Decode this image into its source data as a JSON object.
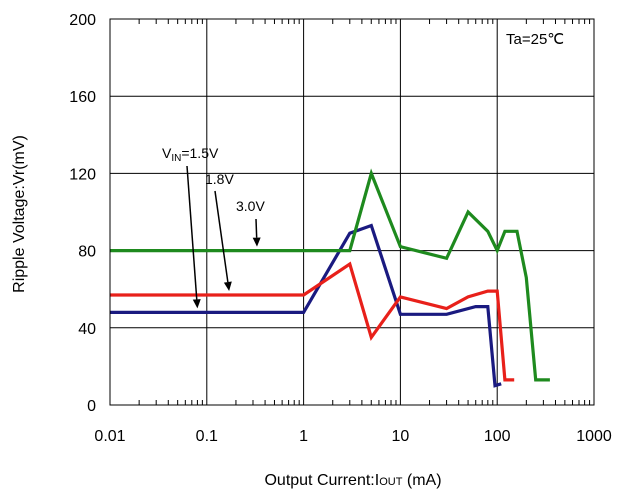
{
  "chart_data": {
    "type": "line",
    "xlabel": "Output Current:I",
    "xlabel_sub": "OUT",
    "xlabel_unit": " (mA)",
    "ylabel": "Ripple Voltage:Vr(mV)",
    "x_scale": "log",
    "xlim": [
      0.01,
      1000
    ],
    "ylim": [
      0,
      200
    ],
    "x_ticks": [
      0.01,
      0.1,
      1,
      10,
      100,
      1000
    ],
    "x_tick_labels": [
      "0.01",
      "0.1",
      "1",
      "10",
      "100",
      "1000"
    ],
    "y_ticks": [
      0,
      40,
      80,
      120,
      160,
      200
    ],
    "y_tick_labels": [
      "0",
      "40",
      "80",
      "120",
      "160",
      "200"
    ],
    "grid": true,
    "condition_label": "Ta=25℃",
    "series": [
      {
        "name": "VIN=1.5V",
        "label_main": "V",
        "label_sub": "IN",
        "label_rest": "=1.5V",
        "color": "#1a1a80",
        "points": [
          [
            0.01,
            48
          ],
          [
            1,
            48
          ],
          [
            3,
            89
          ],
          [
            5,
            93
          ],
          [
            10,
            47
          ],
          [
            30,
            47
          ],
          [
            60,
            51
          ],
          [
            80,
            51
          ],
          [
            95,
            10
          ],
          [
            110,
            11
          ]
        ]
      },
      {
        "name": "1.8V",
        "label_rest": "1.8V",
        "color": "#e8201a",
        "points": [
          [
            0.01,
            57
          ],
          [
            1,
            57
          ],
          [
            3,
            73
          ],
          [
            5,
            35
          ],
          [
            10,
            56
          ],
          [
            30,
            50
          ],
          [
            50,
            56
          ],
          [
            80,
            59
          ],
          [
            100,
            59
          ],
          [
            120,
            13
          ],
          [
            150,
            13
          ]
        ]
      },
      {
        "name": "3.0V",
        "label_rest": "3.0V",
        "color": "#1e8a1e",
        "points": [
          [
            0.01,
            80
          ],
          [
            3,
            80
          ],
          [
            5,
            120
          ],
          [
            10,
            82
          ],
          [
            30,
            76
          ],
          [
            50,
            100
          ],
          [
            80,
            90
          ],
          [
            100,
            80
          ],
          [
            120,
            90
          ],
          [
            160,
            90
          ],
          [
            200,
            66
          ],
          [
            250,
            13
          ],
          [
            350,
            13
          ]
        ]
      }
    ]
  }
}
